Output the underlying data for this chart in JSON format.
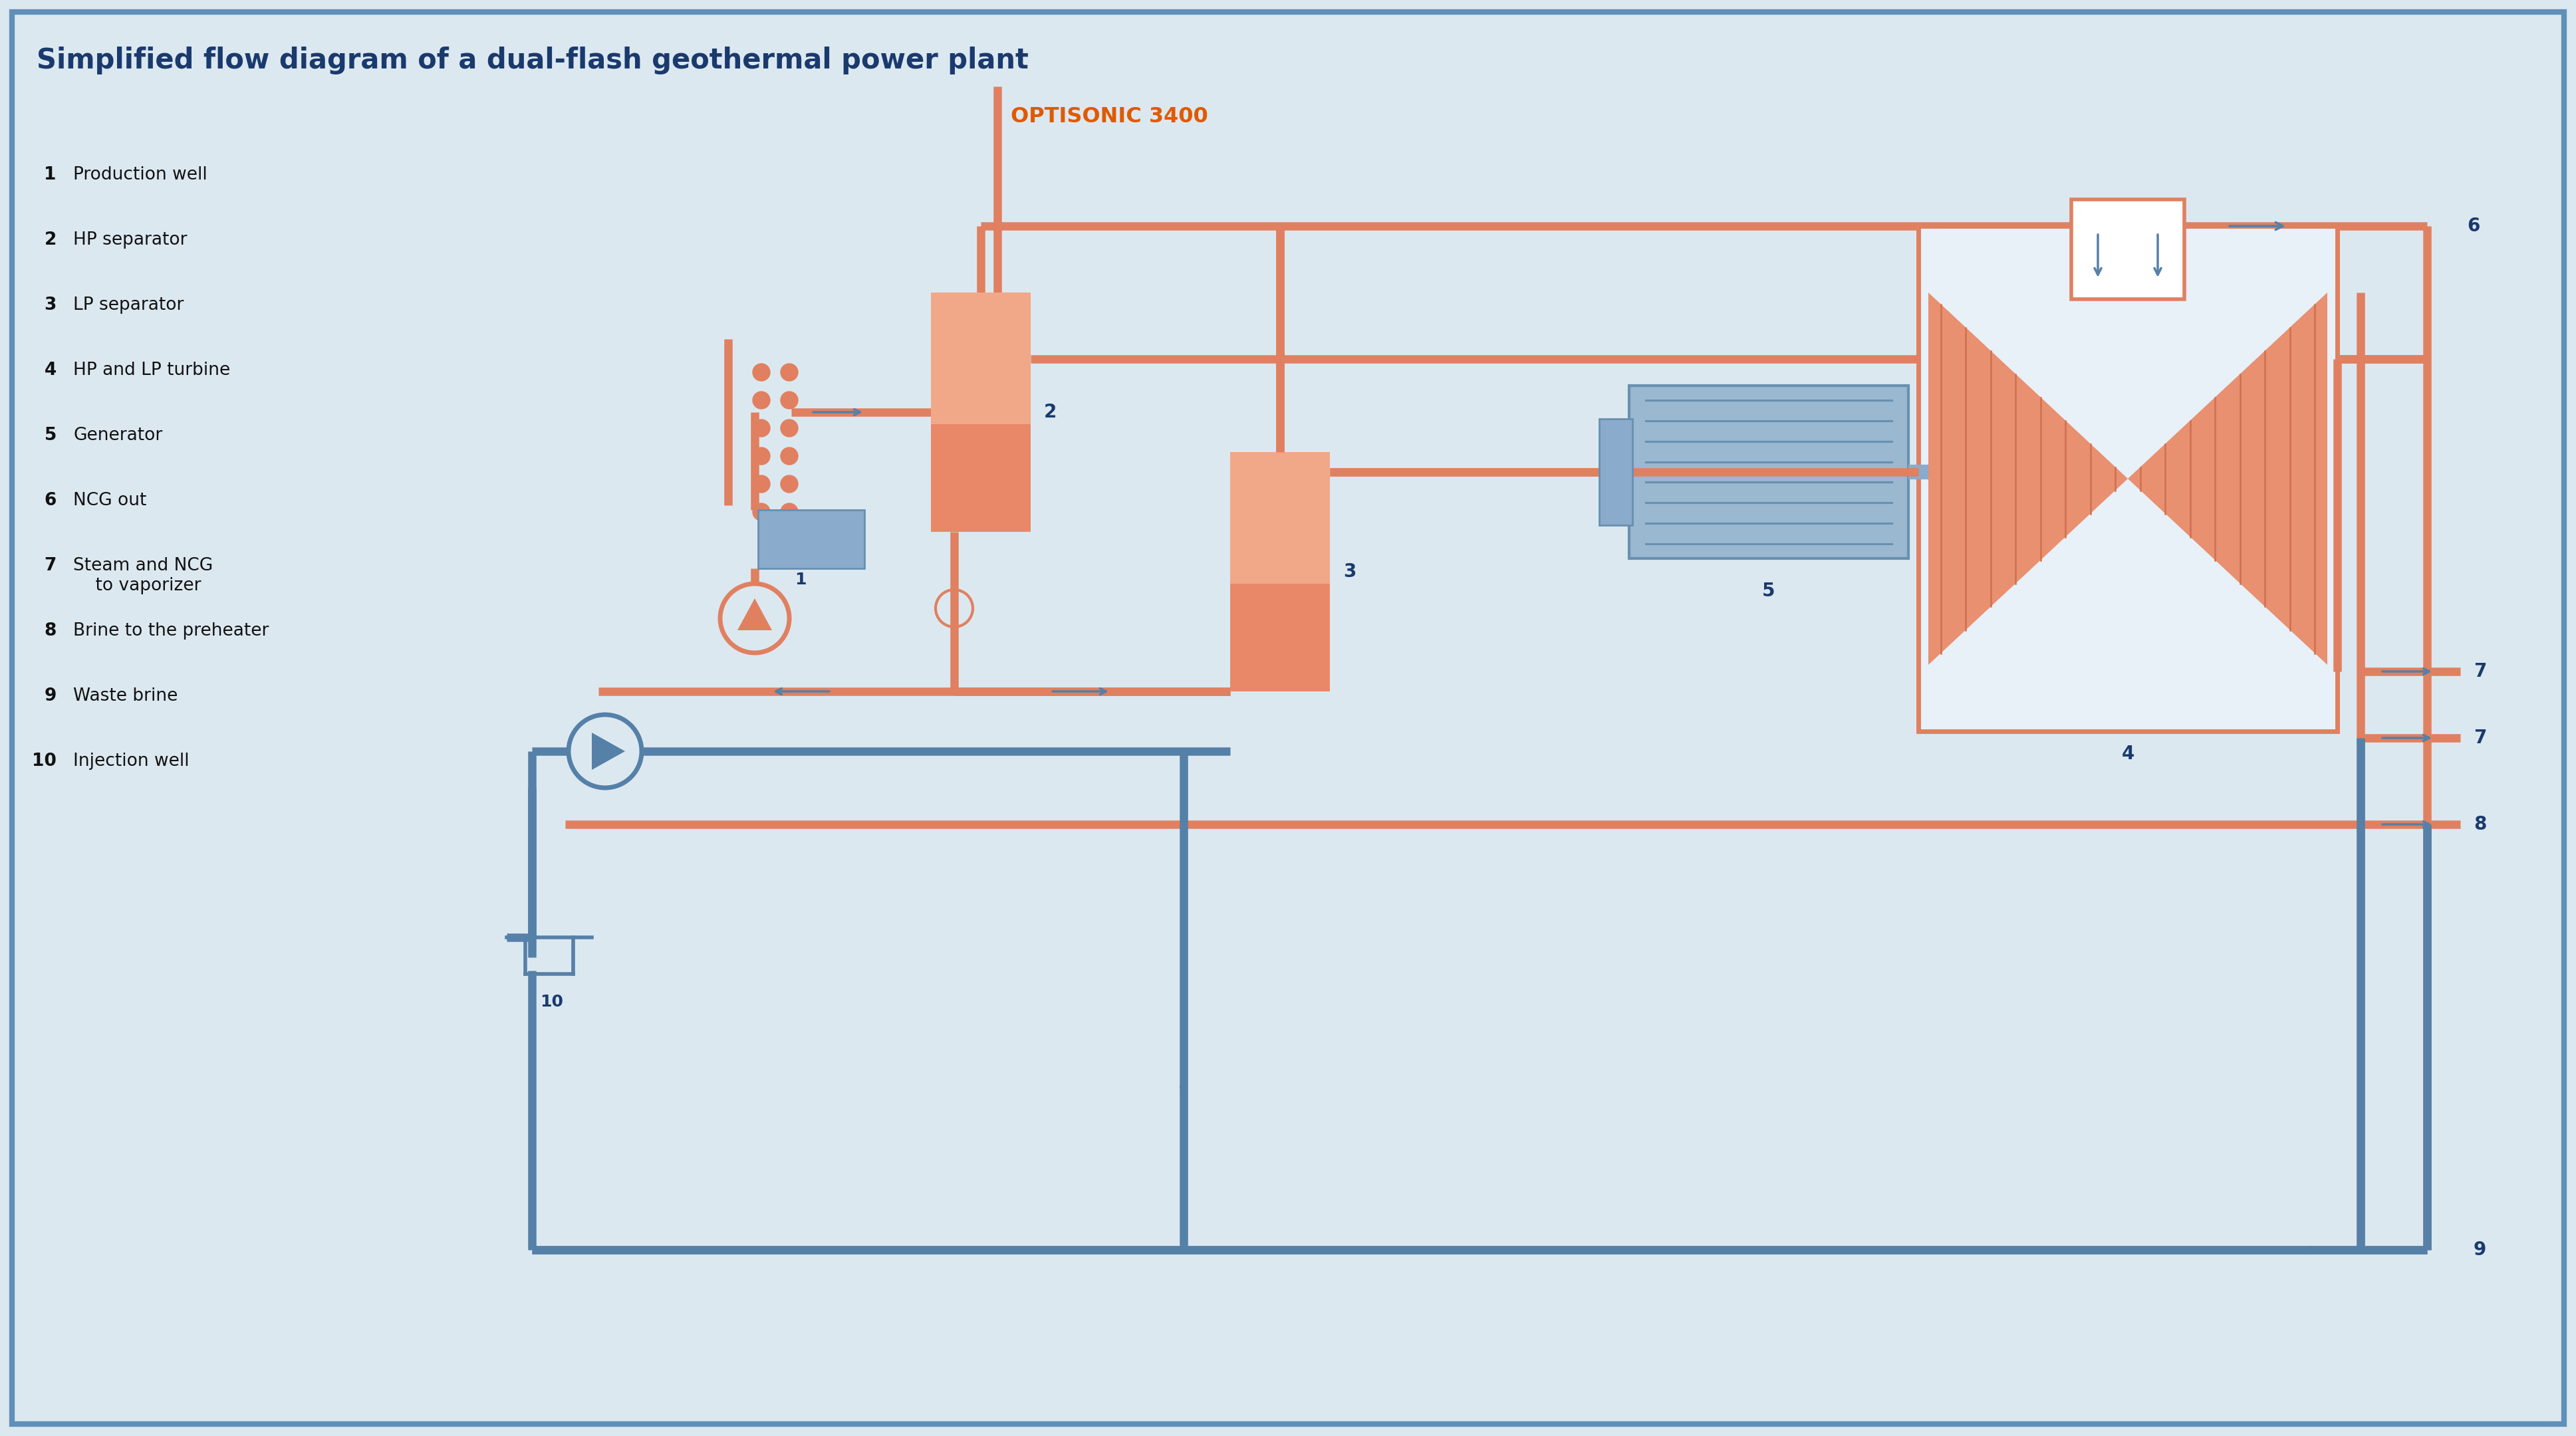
{
  "title": "Simplified flow diagram of a dual-flash geothermal power plant",
  "subtitle": "OPTISONIC 3400",
  "bg_color": "#dce8f0",
  "title_color": "#1a3a6e",
  "subtitle_color": "#e05a00",
  "pipe_orange": "#e08060",
  "pipe_blue": "#5580a8",
  "label_color": "#1a3a6e",
  "turbine_color": "#e89070",
  "turbine_stripe": "#d07050",
  "gen_color": "#9ab8d0",
  "gen_stripe": "#6890b0",
  "well_dot": "#e08060",
  "well_blue": "#8aabcc",
  "separator_face": "#e88868",
  "separator_light": "#f0a888",
  "border_color": "#6090b8",
  "legend_items": [
    [
      "1",
      "Production well"
    ],
    [
      "2",
      "HP separator"
    ],
    [
      "3",
      "LP separator"
    ],
    [
      "4",
      "HP and LP turbine"
    ],
    [
      "5",
      "Generator"
    ],
    [
      "6",
      "NCG out"
    ],
    [
      "7",
      "Steam and NCG\n    to vaporizer"
    ],
    [
      "8",
      "Brine to the preheater"
    ],
    [
      "9",
      "Waste brine"
    ],
    [
      "10",
      "Injection well"
    ]
  ]
}
